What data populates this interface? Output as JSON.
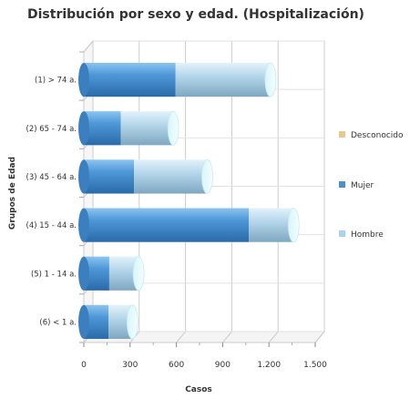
{
  "chart_data": {
    "type": "bar",
    "orientation": "horizontal",
    "stacked": true,
    "style": "3d-cylinder",
    "title": "Distribución por sexo y edad. (Hospitalización)",
    "xlabel": "Casos",
    "ylabel": "Grupos de Edad",
    "categories": [
      "(1) > 74 a.",
      "(2) 65 - 74 a.",
      "(3) 45 - 64 a.",
      "(4) 15 - 44 a.",
      "(5) 1 - 14 a.",
      "(6) < 1 a."
    ],
    "series": [
      {
        "name": "Mujer",
        "color": "#4a8fd0",
        "values": [
          595,
          240,
          325,
          1070,
          165,
          160
        ]
      },
      {
        "name": "Hombre",
        "color": "#a9d2ee",
        "values": [
          615,
          340,
          475,
          290,
          190,
          155
        ]
      },
      {
        "name": "Desconocido",
        "color": "#e8c98a",
        "values": [
          0,
          0,
          0,
          0,
          0,
          0
        ]
      }
    ],
    "xlim": [
      0,
      1500
    ],
    "xticks": [
      0,
      300,
      600,
      900,
      1200,
      1500
    ],
    "xtick_labels": [
      "0",
      "300",
      "600",
      "900",
      "1.200",
      "1.500"
    ],
    "legend_order": [
      "Desconocido",
      "Mujer",
      "Hombre"
    ],
    "legend_position": "right",
    "grid": true
  }
}
